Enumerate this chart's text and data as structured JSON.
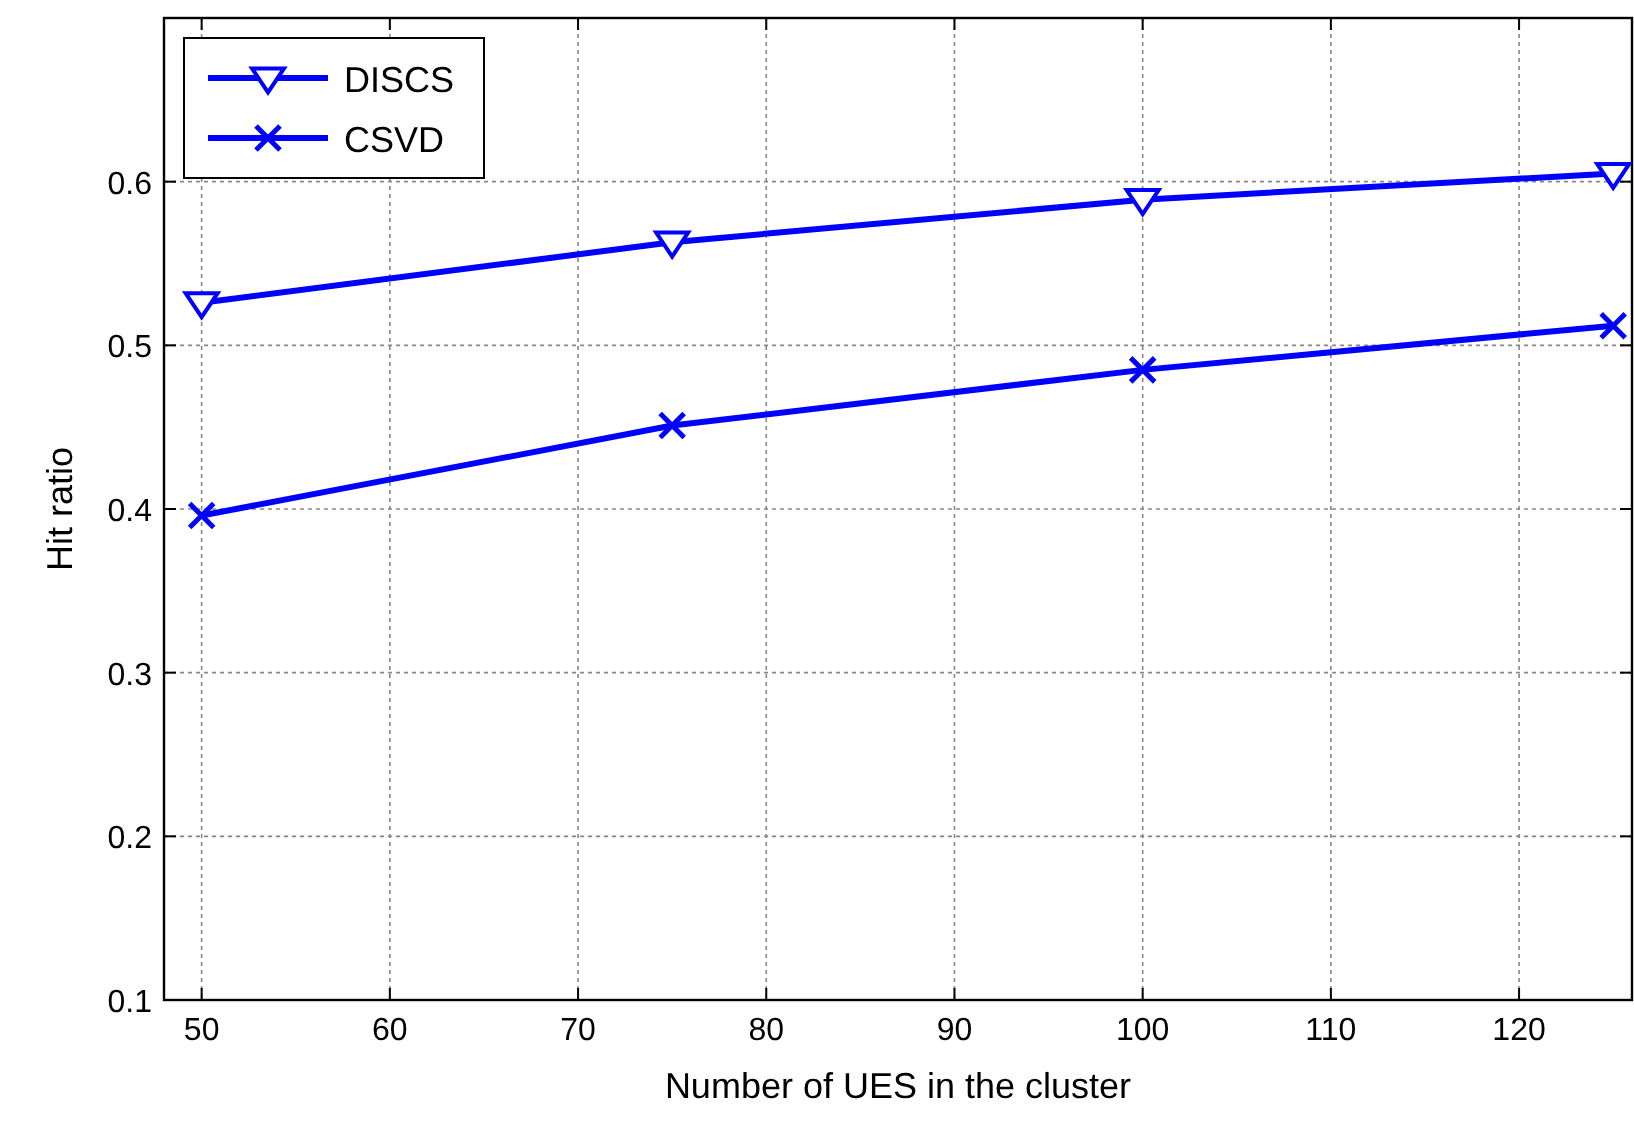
{
  "chart_data": {
    "type": "line",
    "xlabel": "Number of UES in the cluster",
    "ylabel": "Hit ratio",
    "x": [
      50,
      75,
      100,
      125
    ],
    "series": [
      {
        "name": "DISCS",
        "color": "#0000ff",
        "values": [
          0.526,
          0.563,
          0.589,
          0.605
        ],
        "marker": "triangle"
      },
      {
        "name": "CSVD",
        "color": "#0000ff",
        "values": [
          0.396,
          0.451,
          0.485,
          0.512
        ],
        "marker": "cross"
      }
    ],
    "xlim": [
      48,
      126
    ],
    "xticks": [
      50,
      60,
      70,
      80,
      90,
      100,
      110,
      120
    ],
    "ylim": [
      0.1,
      0.7
    ],
    "yticks": [
      0.1,
      0.2,
      0.3,
      0.4,
      0.5,
      0.6
    ],
    "grid": true,
    "legend": "top left",
    "line_style": "solid"
  }
}
